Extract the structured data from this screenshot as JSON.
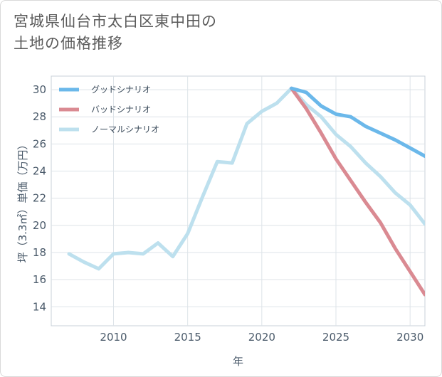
{
  "title_line1": "宮城県仙台市太白区東中田の",
  "title_line2": "土地の価格推移",
  "chart_data": {
    "type": "line",
    "title": "宮城県仙台市太白区東中田の土地の価格推移",
    "xlabel": "年",
    "ylabel": "坪（3.3㎡）単価（万円）",
    "xlim": [
      2005.8,
      2031
    ],
    "ylim": [
      12.6,
      31
    ],
    "x_ticks": [
      2010,
      2015,
      2020,
      2025,
      2030
    ],
    "y_ticks": [
      14,
      16,
      18,
      20,
      22,
      24,
      26,
      28,
      30
    ],
    "legend_position": "top-left",
    "series": [
      {
        "name": "グッドシナリオ",
        "color": "#6bb8ea",
        "x": [
          2022,
          2023,
          2024,
          2025,
          2026,
          2027,
          2028,
          2029,
          2030,
          2031
        ],
        "values": [
          30.1,
          29.8,
          28.8,
          28.2,
          28.0,
          27.3,
          26.8,
          26.3,
          25.7,
          25.1
        ]
      },
      {
        "name": "バッドシナリオ",
        "color": "#da8a92",
        "x": [
          2022,
          2023,
          2024,
          2025,
          2026,
          2027,
          2028,
          2029,
          2030,
          2031
        ],
        "values": [
          30.1,
          28.6,
          26.8,
          24.9,
          23.3,
          21.7,
          20.2,
          18.3,
          16.6,
          14.9
        ]
      },
      {
        "name": "ノーマルシナリオ",
        "color": "#bde0ee",
        "x": [
          2007,
          2008,
          2009,
          2010,
          2011,
          2012,
          2013,
          2014,
          2015,
          2016,
          2017,
          2018,
          2019,
          2020,
          2021,
          2022,
          2023,
          2024,
          2025,
          2026,
          2027,
          2028,
          2029,
          2030,
          2031
        ],
        "values": [
          17.9,
          17.3,
          16.8,
          17.9,
          18.0,
          17.9,
          18.7,
          17.7,
          19.4,
          22.1,
          24.7,
          24.6,
          27.5,
          28.4,
          29.0,
          30.1,
          28.9,
          28.0,
          26.7,
          25.8,
          24.6,
          23.6,
          22.4,
          21.5,
          20.1
        ]
      }
    ]
  }
}
